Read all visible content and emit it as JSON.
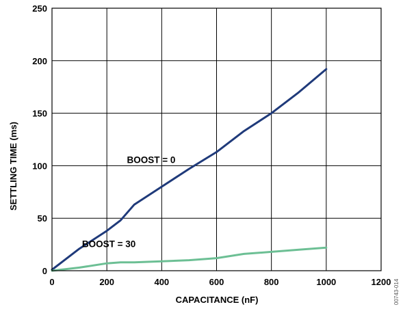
{
  "chart_data": {
    "type": "line",
    "title": "",
    "xlabel": "CAPACITANCE (nF)",
    "ylabel": "SETTLING TIME (ms)",
    "xlim": [
      0,
      1200
    ],
    "ylim": [
      0,
      250
    ],
    "xticks": [
      0,
      200,
      400,
      600,
      800,
      1000,
      1200
    ],
    "yticks": [
      0,
      50,
      100,
      150,
      200,
      250
    ],
    "grid": true,
    "legend": "none",
    "series": [
      {
        "name": "BOOST = 0",
        "color": "#1f3a7a",
        "x": [
          0,
          100,
          200,
          250,
          300,
          400,
          500,
          600,
          700,
          800,
          900,
          1000
        ],
        "y": [
          1,
          21,
          38,
          48,
          63,
          80,
          97,
          113,
          133,
          150,
          170,
          192
        ]
      },
      {
        "name": "BOOST = 30",
        "color": "#6cbf94",
        "x": [
          0,
          100,
          200,
          250,
          300,
          400,
          500,
          550,
          600,
          700,
          800,
          900,
          1000
        ],
        "y": [
          0,
          3,
          7,
          8,
          8,
          9,
          10,
          11,
          12,
          16,
          18,
          20,
          22
        ]
      }
    ],
    "figure_code": "00743-014"
  }
}
